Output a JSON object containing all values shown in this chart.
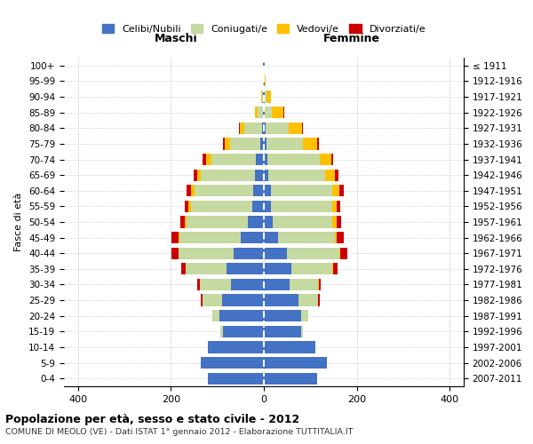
{
  "age_groups": [
    "100+",
    "95-99",
    "90-94",
    "85-89",
    "80-84",
    "75-79",
    "70-74",
    "65-69",
    "60-64",
    "55-59",
    "50-54",
    "45-49",
    "40-44",
    "35-39",
    "30-34",
    "25-29",
    "20-24",
    "15-19",
    "10-14",
    "5-9",
    "0-4"
  ],
  "birth_years": [
    "≤ 1911",
    "1912-1916",
    "1917-1921",
    "1922-1926",
    "1927-1931",
    "1932-1936",
    "1937-1941",
    "1942-1946",
    "1947-1951",
    "1952-1956",
    "1957-1961",
    "1962-1966",
    "1967-1971",
    "1972-1976",
    "1977-1981",
    "1982-1986",
    "1987-1991",
    "1992-1996",
    "1997-2001",
    "2002-2006",
    "2007-2011"
  ],
  "male": {
    "celibe": [
      1,
      0,
      1,
      2,
      4,
      7,
      18,
      20,
      22,
      25,
      35,
      50,
      65,
      80,
      70,
      90,
      95,
      88,
      120,
      135,
      120
    ],
    "coniugato": [
      0,
      1,
      3,
      12,
      38,
      65,
      95,
      115,
      128,
      132,
      132,
      132,
      118,
      88,
      68,
      42,
      15,
      5,
      0,
      0,
      0
    ],
    "vedovo": [
      0,
      0,
      2,
      5,
      10,
      12,
      12,
      8,
      6,
      5,
      3,
      2,
      1,
      1,
      0,
      0,
      0,
      0,
      0,
      0,
      0
    ],
    "divorziato": [
      0,
      0,
      0,
      1,
      2,
      4,
      6,
      8,
      10,
      8,
      10,
      15,
      15,
      8,
      5,
      3,
      1,
      0,
      0,
      0,
      0
    ]
  },
  "female": {
    "nubile": [
      1,
      1,
      1,
      2,
      3,
      5,
      8,
      10,
      15,
      15,
      20,
      30,
      50,
      60,
      55,
      75,
      80,
      80,
      110,
      135,
      115
    ],
    "coniugata": [
      0,
      1,
      5,
      15,
      50,
      80,
      112,
      122,
      132,
      132,
      128,
      122,
      112,
      88,
      62,
      42,
      15,
      5,
      0,
      0,
      0
    ],
    "vedova": [
      0,
      2,
      10,
      25,
      30,
      30,
      25,
      20,
      15,
      10,
      8,
      5,
      3,
      2,
      1,
      0,
      0,
      0,
      0,
      0,
      0
    ],
    "divorziata": [
      0,
      0,
      0,
      1,
      2,
      3,
      5,
      8,
      10,
      8,
      10,
      15,
      15,
      8,
      5,
      3,
      1,
      0,
      0,
      0,
      0
    ]
  },
  "colors": {
    "celibe": "#4472c4",
    "coniugato": "#c5d9a0",
    "vedovo": "#ffc000",
    "divorziato": "#cc0000"
  },
  "xlim": [
    -430,
    430
  ],
  "xticks": [
    -400,
    -200,
    0,
    200,
    400
  ],
  "xticklabels": [
    "400",
    "200",
    "0",
    "200",
    "400"
  ],
  "title": "Popolazione per età, sesso e stato civile - 2012",
  "subtitle": "COMUNE DI MEOLO (VE) - Dati ISTAT 1° gennaio 2012 - Elaborazione TUTTITALIA.IT",
  "ylabel_left": "Fasce di età",
  "maschi_label": "Maschi",
  "femmine_label": "Femmine",
  "legend_labels": [
    "Celibi/Nubili",
    "Coniugati/e",
    "Vedovi/e",
    "Divorziati/e"
  ],
  "bg_color": "#ffffff",
  "grid_color": "#c8c8c8"
}
